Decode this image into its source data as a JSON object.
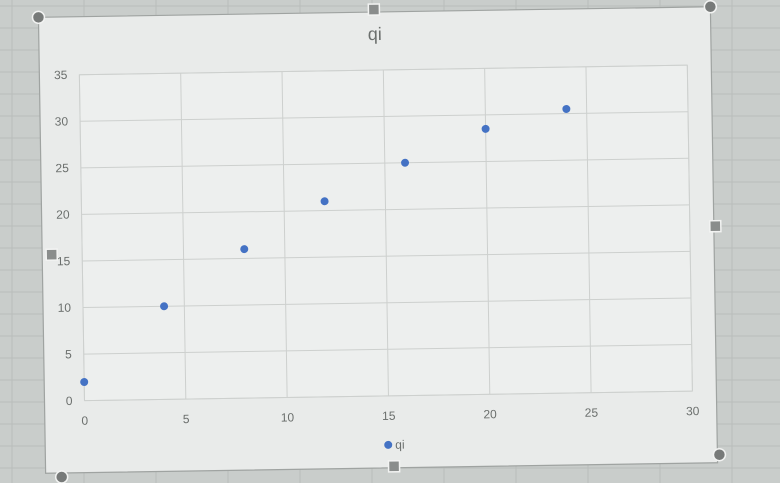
{
  "chart_data": {
    "type": "scatter",
    "title": "qi",
    "xlabel": "",
    "ylabel": "",
    "xlim": [
      0,
      30
    ],
    "ylim": [
      0,
      35
    ],
    "x_ticks": [
      0,
      5,
      10,
      15,
      20,
      25,
      30
    ],
    "y_ticks": [
      0,
      5,
      10,
      15,
      20,
      25,
      30,
      35
    ],
    "grid": true,
    "legend_position": "bottom",
    "series": [
      {
        "name": "qi",
        "color": "#4472c4",
        "points": [
          {
            "x": 0,
            "y": 2
          },
          {
            "x": 4,
            "y": 10
          },
          {
            "x": 8,
            "y": 16
          },
          {
            "x": 12,
            "y": 21
          },
          {
            "x": 16,
            "y": 25
          },
          {
            "x": 20,
            "y": 28.5
          },
          {
            "x": 24,
            "y": 30.5
          }
        ]
      }
    ]
  }
}
